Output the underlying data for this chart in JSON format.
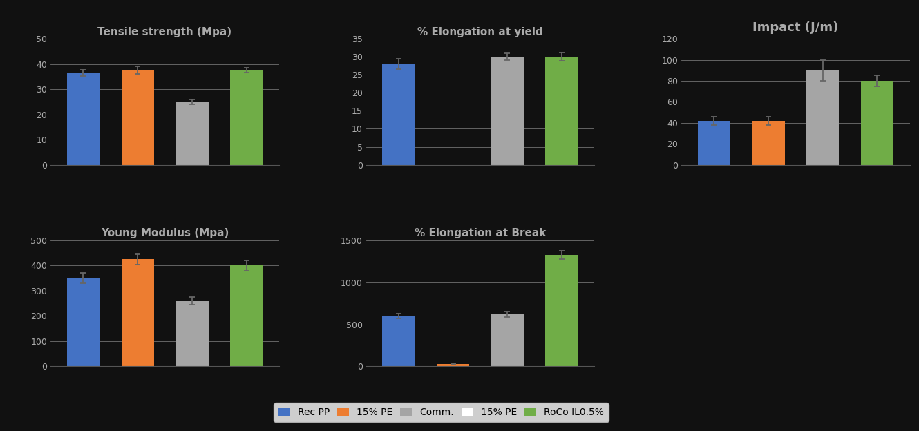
{
  "background_color": "#111111",
  "text_color": "#aaaaaa",
  "bar_colors": [
    "#4472c4",
    "#ed7d31",
    "#a5a5a5",
    "#70ad47"
  ],
  "legend_labels": [
    "Rec PP",
    "15% PE",
    "Comm.",
    "15% PE",
    "RoCo IL0.5%"
  ],
  "legend_colors": [
    "#4472c4",
    "#ed7d31",
    "#a5a5a5",
    null,
    "#70ad47"
  ],
  "tensile": {
    "title": "Tensile strength (Mpa)",
    "values": [
      36.5,
      37.5,
      25.0,
      37.5
    ],
    "errors": [
      1.2,
      1.5,
      1.0,
      1.0
    ],
    "ylim": [
      0,
      50
    ],
    "yticks": [
      0,
      10,
      20,
      30,
      40,
      50
    ]
  },
  "young": {
    "title": "Young Modulus (Mpa)",
    "values": [
      350,
      425,
      260,
      400
    ],
    "errors": [
      20,
      20,
      15,
      20
    ],
    "ylim": [
      0,
      500
    ],
    "yticks": [
      0,
      100,
      200,
      300,
      400,
      500
    ]
  },
  "elongation_yield": {
    "title": "% Elongation at yield",
    "values": [
      28.0,
      0,
      30.0,
      30.0
    ],
    "errors": [
      1.5,
      0,
      1.0,
      1.2
    ],
    "ylim": [
      0,
      35
    ],
    "yticks": [
      0,
      5,
      10,
      15,
      20,
      25,
      30,
      35
    ]
  },
  "elongation_break": {
    "title": "% Elongation at Break",
    "values": [
      600,
      30,
      620,
      1330
    ],
    "errors": [
      30,
      5,
      30,
      50
    ],
    "ylim": [
      0,
      1500
    ],
    "yticks": [
      0,
      500,
      1000,
      1500
    ]
  },
  "impact": {
    "title": "Impact (J/m)",
    "values": [
      42,
      42,
      90,
      80
    ],
    "errors": [
      4,
      4,
      10,
      5
    ],
    "ylim": [
      0,
      120
    ],
    "yticks": [
      0,
      20,
      40,
      60,
      80,
      100,
      120
    ]
  }
}
